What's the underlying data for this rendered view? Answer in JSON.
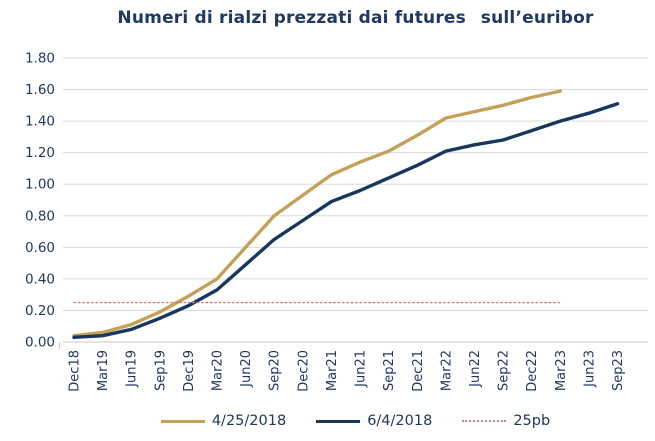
{
  "title": "Numeri di rialzi prezzati dai futures  sull’euribor",
  "colors": {
    "text_navy": "#1F3864",
    "line_gold": "#C5A059",
    "line_navy": "#17375E",
    "line_dotted_red": "#CE8483",
    "gridline": "#DADADA",
    "axis": "#C8C8C8"
  },
  "chart_data": {
    "type": "line",
    "title": "Numeri di rialzi prezzati dai futures sull’euribor",
    "categories": [
      "Dec18",
      "Mar19",
      "Jun19",
      "Sep19",
      "Dec19",
      "Mar20",
      "Jun20",
      "Sep20",
      "Dec20",
      "Mar21",
      "Jun21",
      "Sep21",
      "Dec21",
      "Mar22",
      "Jun22",
      "Sep22",
      "Dec22",
      "Mar23",
      "Jun23",
      "Sep23"
    ],
    "y_ticks": [
      "0.00",
      "0.20",
      "0.40",
      "0.60",
      "0.80",
      "1.00",
      "1.20",
      "1.40",
      "1.60",
      "1.80"
    ],
    "ylim": [
      0,
      1.8
    ],
    "grid": "horizontal",
    "legend_position": "bottom",
    "x_label_rotation": -90,
    "series": [
      {
        "name": "4/25/2018",
        "color": "#C5A059",
        "style": "solid",
        "values": [
          0.04,
          0.06,
          0.11,
          0.19,
          0.29,
          0.4,
          0.6,
          0.8,
          0.93,
          1.06,
          1.14,
          1.21,
          1.31,
          1.42,
          1.46,
          1.5,
          1.55,
          1.59,
          null,
          null
        ]
      },
      {
        "name": "6/4/2018",
        "color": "#17375E",
        "style": "solid",
        "values": [
          0.03,
          0.04,
          0.08,
          0.15,
          0.23,
          0.33,
          0.49,
          0.65,
          0.77,
          0.89,
          0.96,
          1.04,
          1.12,
          1.21,
          1.25,
          1.28,
          1.34,
          1.4,
          1.45,
          1.51
        ]
      },
      {
        "name": "25pb",
        "color": "#CE8483",
        "style": "dotted",
        "values": [
          0.25,
          0.25,
          0.25,
          0.25,
          0.25,
          0.25,
          0.25,
          0.25,
          0.25,
          0.25,
          0.25,
          0.25,
          0.25,
          0.25,
          0.25,
          0.25,
          0.25,
          0.25,
          null,
          null
        ]
      }
    ]
  },
  "legend": {
    "items": [
      {
        "label": "4/25/2018"
      },
      {
        "label": "6/4/2018"
      },
      {
        "label": "25pb"
      }
    ]
  }
}
